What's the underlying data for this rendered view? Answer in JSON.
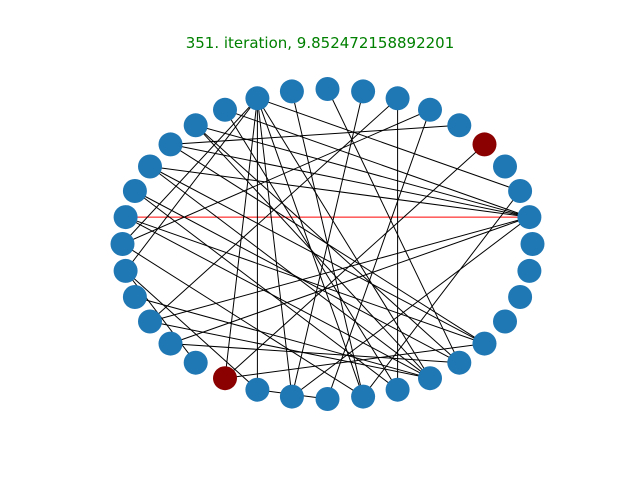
{
  "title": "351. iteration, 9.852472158892201",
  "colors": {
    "title": "#008000",
    "node": "#1f77b4",
    "node_highlight": "#8b0000",
    "edge": "#000000",
    "edge_highlight": "#ff0000"
  },
  "graph": {
    "layout": "circular",
    "node_count": 36,
    "highlighted_nodes": [
      4,
      24
    ],
    "edges": [
      [
        1,
        12
      ],
      [
        1,
        14
      ],
      [
        1,
        17
      ],
      [
        1,
        15
      ],
      [
        1,
        13
      ],
      [
        1,
        26
      ],
      [
        1,
        21
      ],
      [
        1,
        22
      ],
      [
        2,
        11
      ],
      [
        2,
        28
      ],
      [
        4,
        24
      ],
      [
        5,
        14
      ],
      [
        6,
        18
      ],
      [
        6,
        27
      ],
      [
        7,
        21
      ],
      [
        7,
        29
      ],
      [
        8,
        26
      ],
      [
        9,
        31
      ],
      [
        10,
        28
      ],
      [
        11,
        30
      ],
      [
        11,
        28
      ],
      [
        11,
        18
      ],
      [
        11,
        19
      ],
      [
        11,
        25
      ],
      [
        11,
        24
      ],
      [
        11,
        26
      ],
      [
        12,
        29
      ],
      [
        13,
        30
      ],
      [
        13,
        31
      ],
      [
        14,
        32
      ],
      [
        15,
        30
      ],
      [
        15,
        32
      ],
      [
        16,
        31
      ],
      [
        16,
        29
      ],
      [
        17,
        30
      ],
      [
        17,
        32
      ],
      [
        18,
        28
      ],
      [
        19,
        23
      ],
      [
        19,
        25
      ],
      [
        20,
        30
      ],
      [
        21,
        30
      ],
      [
        22,
        31
      ],
      [
        24,
        32
      ],
      [
        25,
        27
      ]
    ],
    "edge_highlights": [
      2
    ]
  }
}
